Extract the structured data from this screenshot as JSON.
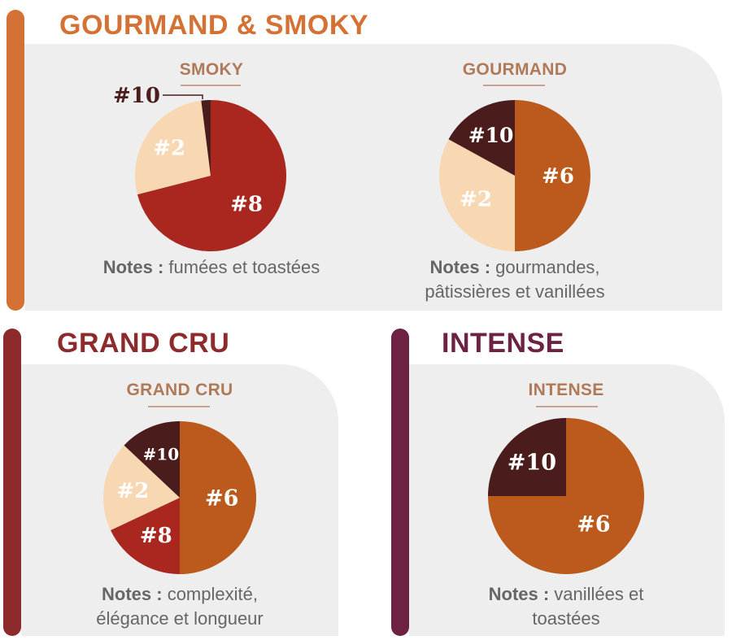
{
  "colors": {
    "section_gourmand_smoky": "#d47236",
    "section_grand_cru": "#8d2a2c",
    "section_intense": "#6e2243",
    "chart_title": "#b07a58",
    "notes_text": "#666666",
    "panel_bg": "#eeeeee",
    "label_light": "#ffffff"
  },
  "sections": {
    "gourmand_smoky": {
      "title": "GOURMAND & SMOKY"
    },
    "grand_cru": {
      "title": "GRAND CRU"
    },
    "intense": {
      "title": "INTENSE"
    }
  },
  "notes_prefix": "Notes :",
  "charts": {
    "smoky": {
      "notes_text": " fumées et toastées"
    },
    "gourmand": {
      "notes_text": " gourmandes, pâtissières et vanillées"
    },
    "grand_cru": {
      "notes_text": " complexité, élégance et longueur"
    },
    "intense": {
      "notes_text": " vanillées et toastées"
    }
  },
  "chart_data": [
    {
      "id": "smoky",
      "type": "pie",
      "title": "SMOKY",
      "slices": [
        {
          "label": "#8",
          "value": 71,
          "color": "#a9271f"
        },
        {
          "label": "#2",
          "value": 27,
          "color": "#f7d8b3"
        },
        {
          "label": "#10",
          "value": 2,
          "color": "#4b1c1c"
        }
      ]
    },
    {
      "id": "gourmand",
      "type": "pie",
      "title": "GOURMAND",
      "slices": [
        {
          "label": "#6",
          "value": 50,
          "color": "#bb5a1c"
        },
        {
          "label": "#2",
          "value": 33,
          "color": "#f7d8b3"
        },
        {
          "label": "#10",
          "value": 17,
          "color": "#4b1c1c"
        }
      ]
    },
    {
      "id": "grand_cru",
      "type": "pie",
      "title": "GRAND CRU",
      "slices": [
        {
          "label": "#6",
          "value": 50,
          "color": "#bb5a1c"
        },
        {
          "label": "#8",
          "value": 18,
          "color": "#a9271f"
        },
        {
          "label": "#2",
          "value": 19,
          "color": "#f7d8b3"
        },
        {
          "label": "#10",
          "value": 13,
          "color": "#4b1c1c"
        }
      ]
    },
    {
      "id": "intense",
      "type": "pie",
      "title": "INTENSE",
      "slices": [
        {
          "label": "#6",
          "value": 75,
          "color": "#bb5a1c"
        },
        {
          "label": "#10",
          "value": 25,
          "color": "#4b1c1c"
        }
      ]
    }
  ]
}
